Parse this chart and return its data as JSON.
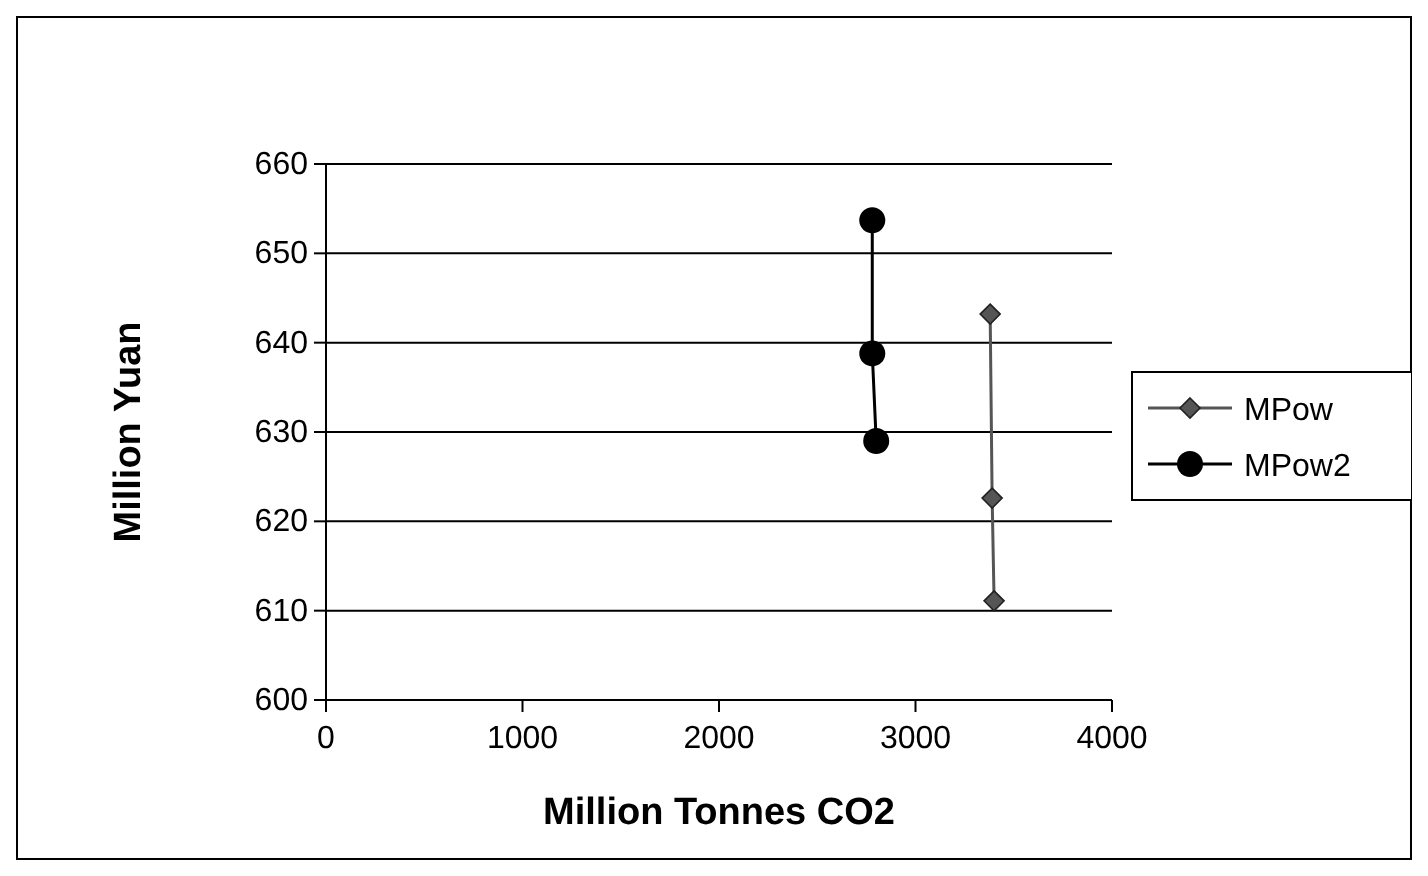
{
  "chart_data": {
    "type": "line",
    "xlabel": "Million Tonnes CO2",
    "ylabel": "Million Yuan",
    "xlim": [
      0,
      4000
    ],
    "xticks": [
      0,
      1000,
      2000,
      3000,
      4000
    ],
    "ylim": [
      600,
      660
    ],
    "yticks": [
      600,
      610,
      620,
      630,
      640,
      650,
      660
    ],
    "grid": "y",
    "legend": "right",
    "series": [
      {
        "name": "MPow",
        "color": "#555555",
        "marker": "diamond",
        "x": [
          3380,
          3390,
          3400
        ],
        "values": [
          643.2,
          622.6,
          611.1
        ]
      },
      {
        "name": "MPow2",
        "color": "#000000",
        "marker": "circle",
        "x": [
          2780,
          2780,
          2800
        ],
        "values": [
          653.7,
          638.8,
          629.0
        ]
      }
    ]
  }
}
